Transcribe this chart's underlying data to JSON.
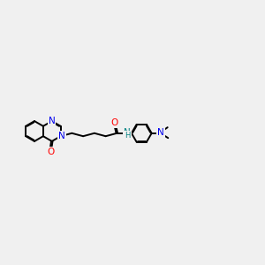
{
  "bg_color": "#f0f0f0",
  "bond_color": "#000000",
  "N_color": "#0000ee",
  "O_color": "#ff0000",
  "NH_color": "#008080",
  "figsize": [
    3.0,
    3.0
  ],
  "dpi": 100,
  "xlim": [
    0,
    10
  ],
  "ylim": [
    3.0,
    7.0
  ],
  "bond_lw": 1.4,
  "ring_s": 0.38
}
